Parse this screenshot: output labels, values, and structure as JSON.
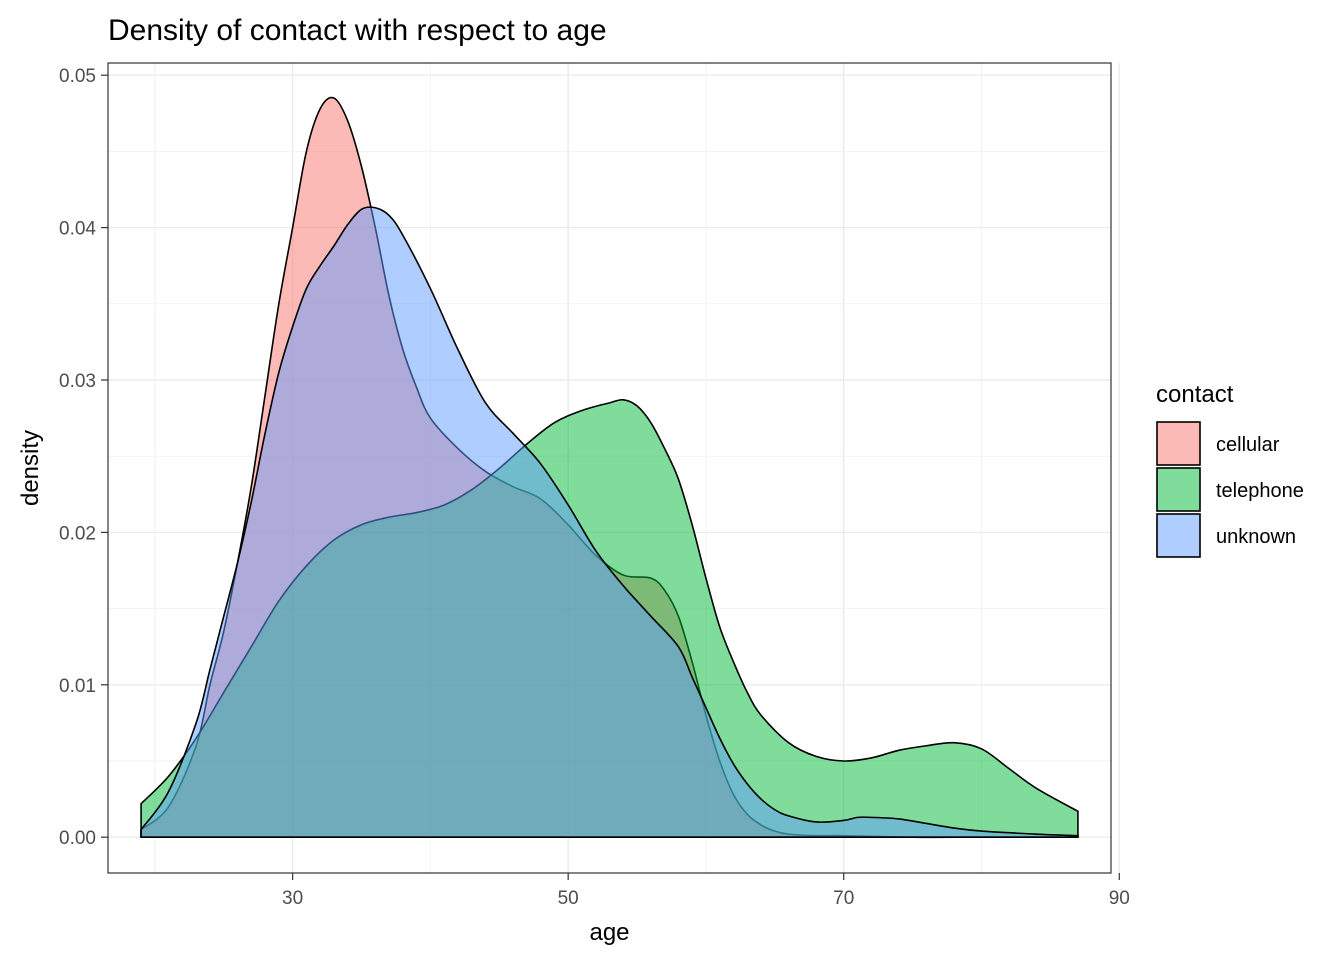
{
  "chart_data": {
    "type": "area",
    "title": "Density of contact with respect to age",
    "xlabel": "age",
    "ylabel": "density",
    "xlim": [
      16.6,
      89.4
    ],
    "ylim": [
      -0.00235,
      0.0508
    ],
    "x_ticks": [
      30,
      50,
      70,
      90
    ],
    "x_tick_labels": [
      "30",
      "50",
      "70",
      "90"
    ],
    "y_ticks": [
      0,
      0.01,
      0.02,
      0.03,
      0.04,
      0.05
    ],
    "y_tick_labels": [
      "0.00",
      "0.01",
      "0.02",
      "0.03",
      "0.04",
      "0.05"
    ],
    "grid": true,
    "legend": {
      "title": "contact",
      "placement": "right"
    },
    "series": [
      {
        "name": "cellular",
        "color": "#F8766D",
        "x": [
          19.0,
          21.0,
          23.0,
          24.0,
          25.0,
          26.0,
          27.0,
          28.0,
          29.0,
          30.0,
          31.0,
          32.0,
          33.0,
          34.0,
          35.0,
          36.0,
          37.0,
          38.0,
          39.0,
          40.0,
          42.0,
          44.0,
          46.0,
          48.0,
          50.0,
          52.0,
          54.0,
          56.0,
          57.0,
          58.0,
          59.0,
          60.0,
          61.0,
          62.0,
          63.0,
          64.0,
          65.0,
          66.0,
          68.0,
          70.0,
          75.0,
          80.0,
          87.0
        ],
        "y": [
          0.0005,
          0.002,
          0.006,
          0.01,
          0.0135,
          0.018,
          0.023,
          0.029,
          0.035,
          0.04,
          0.045,
          0.0478,
          0.0485,
          0.047,
          0.044,
          0.04,
          0.0355,
          0.032,
          0.0295,
          0.0275,
          0.0255,
          0.024,
          0.023,
          0.0222,
          0.0205,
          0.0185,
          0.0172,
          0.017,
          0.0162,
          0.0145,
          0.0115,
          0.008,
          0.005,
          0.0028,
          0.0015,
          0.0008,
          0.0004,
          0.0002,
          0.0001,
          0.0001,
          0.0,
          0.0,
          0.0
        ]
      },
      {
        "name": "telephone",
        "color": "#00BA38",
        "x": [
          19.0,
          21.0,
          23.0,
          25.0,
          27.0,
          29.0,
          31.0,
          33.0,
          35.0,
          37.0,
          39.0,
          41.0,
          43.0,
          45.0,
          47.0,
          49.0,
          51.0,
          53.0,
          54.0,
          55.0,
          56.0,
          57.0,
          58.0,
          59.0,
          60.0,
          61.0,
          62.0,
          63.0,
          64.0,
          66.0,
          68.0,
          70.0,
          72.0,
          74.0,
          76.0,
          78.0,
          80.0,
          82.0,
          84.0,
          87.0
        ],
        "y": [
          0.0022,
          0.004,
          0.0065,
          0.0095,
          0.0125,
          0.0155,
          0.0178,
          0.0195,
          0.0205,
          0.021,
          0.0213,
          0.0218,
          0.0228,
          0.0242,
          0.0258,
          0.0272,
          0.028,
          0.0285,
          0.0287,
          0.0283,
          0.0272,
          0.0255,
          0.0235,
          0.0205,
          0.017,
          0.0138,
          0.0115,
          0.0095,
          0.008,
          0.0062,
          0.0053,
          0.005,
          0.0052,
          0.0057,
          0.006,
          0.0062,
          0.0058,
          0.0045,
          0.0032,
          0.0017
        ]
      },
      {
        "name": "unknown",
        "color": "#619CFF",
        "x": [
          19.0,
          21.0,
          23.0,
          24.0,
          25.0,
          26.0,
          27.0,
          28.0,
          29.0,
          30.0,
          31.0,
          32.0,
          33.0,
          34.0,
          35.0,
          36.0,
          37.0,
          38.0,
          40.0,
          42.0,
          44.0,
          46.0,
          48.0,
          50.0,
          52.0,
          54.0,
          56.0,
          58.0,
          59.0,
          60.0,
          61.0,
          62.0,
          63.0,
          64.0,
          65.0,
          66.0,
          68.0,
          70.0,
          71.0,
          72.0,
          74.0,
          76.0,
          78.0,
          80.0,
          84.0,
          87.0
        ],
        "y": [
          0.0005,
          0.003,
          0.0075,
          0.011,
          0.0145,
          0.018,
          0.022,
          0.0265,
          0.0305,
          0.0335,
          0.036,
          0.0375,
          0.0388,
          0.0402,
          0.0412,
          0.0413,
          0.0408,
          0.0395,
          0.036,
          0.032,
          0.0285,
          0.0265,
          0.0245,
          0.0218,
          0.0188,
          0.0165,
          0.0145,
          0.0125,
          0.0105,
          0.0085,
          0.0065,
          0.0048,
          0.0035,
          0.0025,
          0.0018,
          0.0014,
          0.001,
          0.0011,
          0.0013,
          0.0013,
          0.0012,
          0.0009,
          0.0006,
          0.0004,
          0.0002,
          0.0001
        ]
      }
    ]
  }
}
